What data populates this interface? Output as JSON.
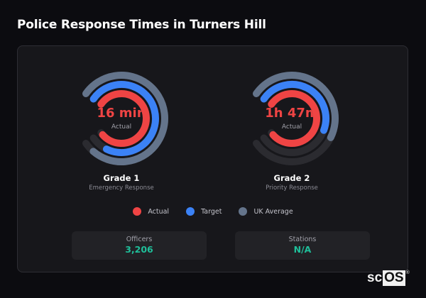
{
  "title": "Police Response Times in Turners Hill",
  "colors": {
    "actual": "#ef4444",
    "target": "#3b82f6",
    "uk_average": "#64748b",
    "track": "#2b2b30",
    "stat_value": "#1fbf9a"
  },
  "gauges": [
    {
      "grade": "Grade 1",
      "description": "Emergency Response",
      "value_text": "16 min",
      "value_label": "Actual"
    },
    {
      "grade": "Grade 2",
      "description": "Priority Response",
      "value_text": "1h 47m",
      "value_label": "Actual"
    }
  ],
  "legend": [
    {
      "label": "Actual",
      "color": "#ef4444"
    },
    {
      "label": "Target",
      "color": "#3b82f6"
    },
    {
      "label": "UK Average",
      "color": "#64748b"
    }
  ],
  "stats": [
    {
      "label": "Officers",
      "value": "3,206"
    },
    {
      "label": "Stations",
      "value": "N/A"
    }
  ],
  "logo": {
    "prefix": "sc",
    "boxed": "OS",
    "mark": "®"
  },
  "chart_data": [
    {
      "type": "radial-bar",
      "title": "Grade 1 — Emergency Response",
      "unit": "minutes",
      "series": [
        {
          "name": "Actual",
          "value": 16,
          "fraction": 0.98
        },
        {
          "name": "Target",
          "value": 15,
          "fraction": 0.9
        },
        {
          "name": "UK Average",
          "value": 15.5,
          "fraction": 0.95
        }
      ],
      "center_label": "16 min"
    },
    {
      "type": "radial-bar",
      "title": "Grade 2 — Priority Response",
      "unit": "minutes",
      "series": [
        {
          "name": "Actual",
          "value": 107,
          "fraction": 0.98
        },
        {
          "name": "Target",
          "value": 60,
          "fraction": 0.57
        },
        {
          "name": "UK Average",
          "value": 62,
          "fraction": 0.59
        }
      ],
      "center_label": "1h 47m"
    }
  ]
}
